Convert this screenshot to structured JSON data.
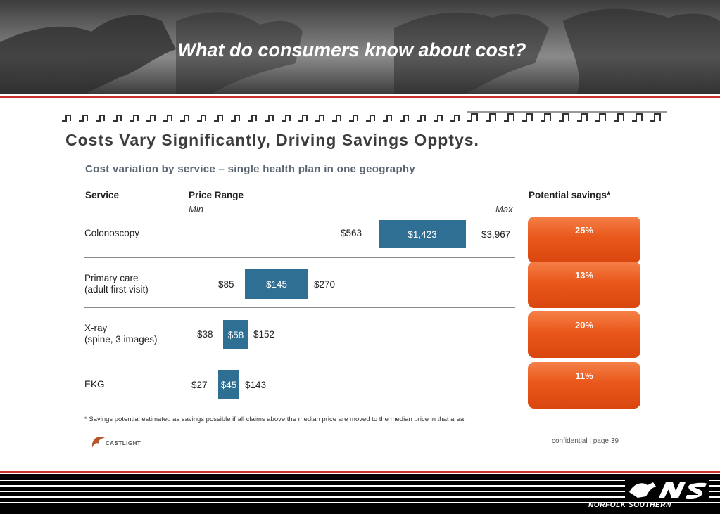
{
  "banner": {
    "title": "What do consumers know about cost?"
  },
  "slide": {
    "heading": "Costs Vary Significantly, Driving Savings Opptys.",
    "subheading": "Cost variation by service – single health plan in one geography",
    "columns": {
      "service": "Service",
      "price_range": "Price Range",
      "min": "Min",
      "max": "Max",
      "potential_savings": "Potential savings*"
    },
    "rows": [
      {
        "service_line1": "Colonoscopy",
        "service_line2": "",
        "min": "$563",
        "median": "$1,423",
        "max": "$3,967",
        "savings": "25%"
      },
      {
        "service_line1": "Primary care",
        "service_line2": "(adult first visit)",
        "min": "$85",
        "median": "$145",
        "max": "$270",
        "savings": "13%"
      },
      {
        "service_line1": "X-ray",
        "service_line2": "(spine, 3 images)",
        "min": "$38",
        "median": "$58",
        "max": "$152",
        "savings": "20%"
      },
      {
        "service_line1": "EKG",
        "service_line2": "",
        "min": "$27",
        "median": "$45",
        "max": "$143",
        "savings": "11%"
      }
    ],
    "footnote": "* Savings potential estimated as savings possible if all claims above the median price are moved to the median price in that area",
    "logo_text": "CASTLIGHT",
    "confidential": "confidential | page 39"
  },
  "footer": {
    "brand": "NORFOLK SOUTHERN"
  },
  "colors": {
    "bar": "#2f6f93",
    "savings": "#e9571b",
    "accent_red": "#c8302c"
  }
}
